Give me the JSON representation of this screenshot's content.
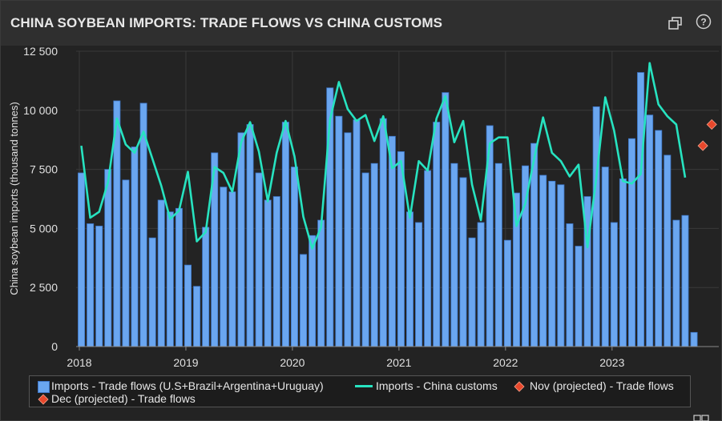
{
  "header": {
    "title": "CHINA SOYBEAN IMPORTS: TRADE FLOWS VS CHINA CUSTOMS",
    "icons": [
      "restore-window-icon",
      "help-icon"
    ]
  },
  "colors": {
    "bar": "#6aa6f0",
    "bar_edge": "#3c74c4",
    "line": "#27e3c0",
    "projected": "#e8482c",
    "grid": "#3a3a3a",
    "axis_text": "#e0e0e0"
  },
  "chart_data": {
    "type": "bar",
    "title": "China soybean imports: trade flows vs China customs",
    "ylabel": "China soybean imports (thousand tonnes)",
    "xlabel": "",
    "ylim": [
      0,
      12500
    ],
    "yticks": [
      0,
      2500,
      5000,
      7500,
      10000,
      12500
    ],
    "ytick_labels": [
      "0",
      "2 500",
      "5 000",
      "7 500",
      "10 000",
      "12 500"
    ],
    "x_start": "2018-01",
    "xtick_labels": [
      "2018",
      "2019",
      "2020",
      "2021",
      "2022",
      "2023"
    ],
    "grid": true,
    "legend_position": "bottom",
    "series": [
      {
        "name": "Imports - Trade flows (U.S+Brazil+Argentina+Uruguay)",
        "type": "bar",
        "values": [
          7350,
          5200,
          5100,
          7500,
          10400,
          7050,
          8450,
          10300,
          4600,
          6200,
          5700,
          5850,
          3450,
          2550,
          5050,
          8200,
          6750,
          6550,
          9050,
          9400,
          7350,
          6200,
          6350,
          9500,
          7600,
          3900,
          4700,
          5350,
          10950,
          9750,
          9050,
          9600,
          7350,
          7750,
          9650,
          8900,
          8250,
          5700,
          5250,
          7450,
          9500,
          10750,
          7750,
          7150,
          4600,
          5250,
          9350,
          7750,
          4500,
          6500,
          7650,
          8600,
          7250,
          7000,
          6850,
          5200,
          4250,
          6350,
          10150,
          7600,
          5250,
          7100,
          8800,
          11600,
          9800,
          9150,
          8100,
          5350,
          5550,
          600
        ]
      },
      {
        "name": "Imports - China customs",
        "type": "line",
        "values": [
          8500,
          5450,
          5700,
          6950,
          9650,
          8550,
          8200,
          9100,
          7950,
          6800,
          5400,
          5750,
          7400,
          4450,
          4850,
          7600,
          7350,
          6550,
          8650,
          9500,
          8250,
          6150,
          8200,
          9550,
          8050,
          5500,
          4150,
          5050,
          9600,
          11200,
          10050,
          9550,
          9800,
          8700,
          9750,
          7550,
          7850,
          5450,
          7850,
          7450,
          9650,
          10600,
          8650,
          9550,
          6850,
          5350,
          8600,
          8850,
          8850,
          5100,
          6050,
          7950,
          9700,
          8200,
          7850,
          7200,
          7700,
          4200,
          7150,
          10550,
          9150,
          7000,
          6900,
          7300,
          12000,
          10250,
          9750,
          9400,
          7150
        ]
      },
      {
        "name": "Nov (projected) - Trade flows",
        "type": "scatter",
        "x": [
          "2023-11"
        ],
        "values": [
          8500
        ]
      },
      {
        "name": "Dec (projected) - Trade flows",
        "type": "scatter",
        "x": [
          "2023-12"
        ],
        "values": [
          9400
        ]
      }
    ]
  }
}
